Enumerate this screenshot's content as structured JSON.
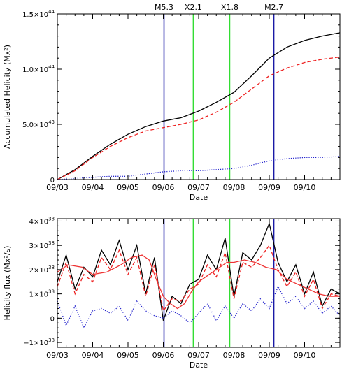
{
  "chart_data": [
    {
      "type": "line",
      "xlabel": "Date",
      "ylabel": "Accumulated Helicity (Mx²)",
      "x_unit": "day (0 = 09/03 00:00)",
      "xlim": [
        0,
        8.0
      ],
      "ylim": [
        0,
        1.5e+44
      ],
      "x_ticks": [
        {
          "x": 0,
          "label": "09/03"
        },
        {
          "x": 1,
          "label": "09/04"
        },
        {
          "x": 2,
          "label": "09/05"
        },
        {
          "x": 3,
          "label": "09/06"
        },
        {
          "x": 4,
          "label": "09/07"
        },
        {
          "x": 5,
          "label": "09/08"
        },
        {
          "x": 6,
          "label": "09/09"
        },
        {
          "x": 7,
          "label": "09/10"
        }
      ],
      "y_ticks": [
        {
          "y": 0,
          "m": "0",
          "e": ""
        },
        {
          "y": 5e+43,
          "m": "5.0×10",
          "e": "43"
        },
        {
          "y": 1e+44,
          "m": "1.0×10",
          "e": "44"
        },
        {
          "y": 1.5e+44,
          "m": "1.5×10",
          "e": "44"
        }
      ],
      "flares": [
        {
          "x": 3.02,
          "label": "M5.3",
          "color": "#1a1aa6"
        },
        {
          "x": 3.85,
          "label": "X2.1",
          "color": "#33dd33"
        },
        {
          "x": 4.88,
          "label": "X1.8",
          "color": "#33dd33"
        },
        {
          "x": 6.13,
          "label": "M2.7",
          "color": "#1a1aa6"
        }
      ],
      "series": [
        {
          "style": "solid",
          "color": "#000000",
          "x": [
            0,
            0.5,
            1,
            1.5,
            2,
            2.5,
            3,
            3.5,
            4,
            4.5,
            5,
            5.5,
            6,
            6.5,
            7,
            7.5,
            8
          ],
          "y": [
            0,
            9e+42,
            2.1e+43,
            3.2e+43,
            4.1e+43,
            4.8e+43,
            5.3e+43,
            5.6e+43,
            6.2e+43,
            7e+43,
            7.9e+43,
            9.4e+43,
            1.1e+44,
            1.2e+44,
            1.26e+44,
            1.3e+44,
            1.33e+44
          ]
        },
        {
          "style": "dashed",
          "color": "#ee2222",
          "x": [
            0,
            0.5,
            1,
            1.5,
            2,
            2.5,
            3,
            3.5,
            4,
            4.5,
            5,
            5.5,
            6,
            6.5,
            7,
            7.5,
            8
          ],
          "y": [
            0,
            8e+42,
            2e+43,
            3e+43,
            3.8e+43,
            4.4e+43,
            4.7e+43,
            5e+43,
            5.4e+43,
            6.1e+43,
            7e+43,
            8.2e+43,
            9.4e+43,
            1.01e+44,
            1.06e+44,
            1.09e+44,
            1.11e+44
          ]
        },
        {
          "style": "dotted",
          "color": "#2222cc",
          "x": [
            0,
            0.5,
            1,
            1.5,
            2,
            2.5,
            3,
            3.5,
            4,
            4.5,
            5,
            5.5,
            6,
            6.5,
            7,
            7.5,
            8
          ],
          "y": [
            0,
            1e+42,
            2e+42,
            3e+42,
            3e+42,
            5e+42,
            7e+42,
            8e+42,
            8e+42,
            9e+42,
            1e+43,
            1.3e+43,
            1.7e+43,
            1.9e+43,
            2e+43,
            2e+43,
            2.1e+43
          ]
        }
      ]
    },
    {
      "type": "line",
      "xlabel": "Date",
      "ylabel": "Helicity flux (Mx²/s)",
      "x_unit": "day (0 = 09/03 00:00)",
      "xlim": [
        0,
        8.0
      ],
      "ylim": [
        -1.2e+38,
        4.1e+38
      ],
      "x_ticks": [
        {
          "x": 0,
          "label": "09/03"
        },
        {
          "x": 1,
          "label": "09/04"
        },
        {
          "x": 2,
          "label": "09/05"
        },
        {
          "x": 3,
          "label": "09/06"
        },
        {
          "x": 4,
          "label": "09/07"
        },
        {
          "x": 5,
          "label": "09/08"
        },
        {
          "x": 6,
          "label": "09/09"
        },
        {
          "x": 7,
          "label": "09/10"
        }
      ],
      "y_ticks": [
        {
          "y": -1e+38,
          "m": "−1×10",
          "e": "38"
        },
        {
          "y": 0,
          "m": "0",
          "e": ""
        },
        {
          "y": 1e+38,
          "m": "1×10",
          "e": "38"
        },
        {
          "y": 2e+38,
          "m": "2×10",
          "e": "38"
        },
        {
          "y": 3e+38,
          "m": "3×10",
          "e": "38"
        },
        {
          "y": 4e+38,
          "m": "4×10",
          "e": "38"
        }
      ],
      "flares": [
        {
          "x": 3.02,
          "label": "M5.3",
          "color": "#1a1aa6"
        },
        {
          "x": 3.85,
          "label": "X2.1",
          "color": "#33dd33"
        },
        {
          "x": 4.88,
          "label": "X1.8",
          "color": "#33dd33"
        },
        {
          "x": 6.13,
          "label": "M2.7",
          "color": "#1a1aa6"
        }
      ],
      "series": [
        {
          "style": "solid",
          "color": "#000000",
          "x": [
            0,
            0.25,
            0.5,
            0.75,
            1,
            1.25,
            1.5,
            1.75,
            2,
            2.25,
            2.5,
            2.75,
            3,
            3.25,
            3.5,
            3.75,
            4,
            4.25,
            4.5,
            4.75,
            5,
            5.25,
            5.5,
            5.75,
            6,
            6.25,
            6.5,
            6.75,
            7,
            7.25,
            7.5,
            7.75,
            8
          ],
          "y": [
            1.5e+38,
            2.6e+38,
            1.2e+38,
            2.1e+38,
            1.7e+38,
            2.8e+38,
            2.2e+38,
            3.2e+38,
            2e+38,
            3e+38,
            1e+38,
            2.5e+38,
            -1e+37,
            9e+37,
            6e+37,
            1.4e+38,
            1.6e+38,
            2.6e+38,
            2e+38,
            3.3e+38,
            9e+37,
            2.7e+38,
            2.4e+38,
            3e+38,
            3.9e+38,
            2.3e+38,
            1.5e+38,
            2.2e+38,
            1e+38,
            1.9e+38,
            5e+37,
            1.2e+38,
            1e+38
          ]
        },
        {
          "style": "dashed",
          "color": "#ee2222",
          "x": [
            0,
            0.25,
            0.5,
            0.75,
            1,
            1.25,
            1.5,
            1.75,
            2,
            2.25,
            2.5,
            2.75,
            3,
            3.25,
            3.5,
            3.75,
            4,
            4.25,
            4.5,
            4.75,
            5,
            5.25,
            5.5,
            5.75,
            6,
            6.25,
            6.5,
            6.75,
            7,
            7.25,
            7.5,
            7.75,
            8
          ],
          "y": [
            1.3e+38,
            2.3e+38,
            1e+38,
            1.8e+38,
            1.5e+38,
            2.5e+38,
            2e+38,
            2.8e+38,
            1.8e+38,
            2.5e+38,
            9e+37,
            2.2e+38,
            3e+37,
            8e+37,
            7e+37,
            1.2e+38,
            1.4e+38,
            2.2e+38,
            1.7e+38,
            2.7e+38,
            8e+37,
            2.3e+38,
            2.1e+38,
            2.5e+38,
            3e+38,
            2e+38,
            1.3e+38,
            1.9e+38,
            9e+37,
            1.6e+38,
            4e+37,
            1e+38,
            9e+37
          ]
        },
        {
          "style": "dotted",
          "color": "#2222cc",
          "x": [
            0,
            0.25,
            0.5,
            0.75,
            1,
            1.25,
            1.5,
            1.75,
            2,
            2.25,
            2.5,
            2.75,
            3,
            3.25,
            3.5,
            3.75,
            4,
            4.25,
            4.5,
            4.75,
            5,
            5.25,
            5.5,
            5.75,
            6,
            6.25,
            6.5,
            6.75,
            7,
            7.25,
            7.5,
            7.75,
            8
          ],
          "y": [
            7e+37,
            -3e+37,
            5e+37,
            -4e+37,
            3e+37,
            4e+37,
            2e+37,
            5e+37,
            -1e+37,
            7e+37,
            3e+37,
            1e+37,
            0.0,
            3e+37,
            1e+37,
            -2e+37,
            2e+37,
            6e+37,
            -1e+37,
            5e+37,
            0.0,
            6e+37,
            3e+37,
            8e+37,
            4e+37,
            1.3e+38,
            6e+37,
            9e+37,
            4e+37,
            7e+37,
            2e+37,
            5e+37,
            1e+37
          ]
        },
        {
          "style": "solid",
          "color": "#ee3333",
          "x": [
            0,
            0.3,
            0.7,
            1.0,
            1.4,
            1.8,
            2.1,
            2.4,
            2.6,
            2.8,
            3.0,
            3.2,
            3.4,
            3.6,
            3.8,
            4.0,
            4.2,
            4.5,
            4.8,
            5.0,
            5.3,
            5.6,
            5.9,
            6.2,
            6.5,
            6.8,
            7.1,
            7.4,
            7.7,
            8.0
          ],
          "y": [
            1.9e+38,
            2.2e+38,
            2.1e+38,
            1.8e+38,
            1.9e+38,
            2.2e+38,
            2.5e+38,
            2.6e+38,
            2.4e+38,
            1.6e+38,
            9e+37,
            6e+37,
            4e+37,
            6e+37,
            1.1e+38,
            1.5e+38,
            1.7e+38,
            2e+38,
            2.3e+38,
            2.3e+38,
            2.4e+38,
            2.3e+38,
            2.1e+38,
            2e+38,
            1.6e+38,
            1.4e+38,
            1.2e+38,
            1e+38,
            9e+37,
            9e+37
          ]
        }
      ]
    }
  ]
}
